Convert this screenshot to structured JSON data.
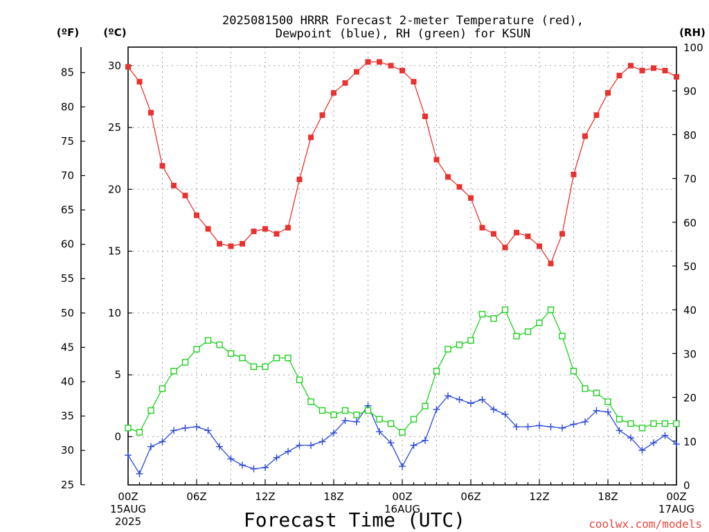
{
  "chart_data": {
    "type": "line",
    "title_line1": "2025081500 HRRR Forecast 2-meter Temperature (red),",
    "title_line2": "Dewpoint (blue), RH (green) for KSUN",
    "xlabel": "Forecast Time (UTC)",
    "credit": "coolwx.com/models",
    "units": {
      "fahrenheit": "(ºF)",
      "celsius": "(ºC)",
      "rh": "(RH)"
    },
    "ylim_c": [
      -3.9,
      31.5
    ],
    "ylim_rh": [
      0,
      100
    ],
    "yticks_f": [
      "25",
      "30",
      "35",
      "40",
      "45",
      "50",
      "55",
      "60",
      "65",
      "70",
      "75",
      "80",
      "85"
    ],
    "yticks_f_values": [
      25,
      30,
      35,
      40,
      45,
      50,
      55,
      60,
      65,
      70,
      75,
      80,
      85
    ],
    "yticks_c": [
      "0",
      "5",
      "10",
      "15",
      "20",
      "25",
      "30"
    ],
    "yticks_c_values": [
      0,
      5,
      10,
      15,
      20,
      25,
      30
    ],
    "yticks_rh": [
      "0",
      "10",
      "20",
      "30",
      "40",
      "50",
      "60",
      "70",
      "80",
      "90",
      "100"
    ],
    "yticks_rh_values": [
      0,
      10,
      20,
      30,
      40,
      50,
      60,
      70,
      80,
      90,
      100
    ],
    "xlim_hours": [
      0,
      48
    ],
    "xticks": [
      {
        "hour": 0,
        "lines": [
          "00Z",
          "15AUG",
          "2025"
        ]
      },
      {
        "hour": 6,
        "lines": [
          "06Z"
        ]
      },
      {
        "hour": 12,
        "lines": [
          "12Z"
        ]
      },
      {
        "hour": 18,
        "lines": [
          "18Z"
        ]
      },
      {
        "hour": 24,
        "lines": [
          "00Z",
          "16AUG"
        ]
      },
      {
        "hour": 30,
        "lines": [
          "06Z"
        ]
      },
      {
        "hour": 36,
        "lines": [
          "12Z"
        ]
      },
      {
        "hour": 42,
        "lines": [
          "18Z"
        ]
      },
      {
        "hour": 48,
        "lines": [
          "00Z",
          "17AUG"
        ]
      }
    ],
    "grid": true,
    "series": [
      {
        "name": "Temperature",
        "color": "#e8322f",
        "marker": "filled-square",
        "axis": "celsius",
        "values": [
          29.9,
          28.7,
          26.2,
          21.9,
          20.3,
          19.5,
          17.9,
          16.8,
          15.6,
          15.4,
          15.6,
          16.6,
          16.8,
          16.4,
          16.9,
          20.8,
          24.2,
          26.0,
          27.8,
          28.6,
          29.5,
          30.3,
          30.3,
          30.0,
          29.6,
          28.7,
          25.9,
          22.4,
          21.0,
          20.2,
          19.3,
          16.9,
          16.4,
          15.3,
          16.5,
          16.2,
          15.4,
          14.0,
          16.4,
          21.2,
          24.3,
          26.0,
          27.8,
          29.2,
          30.0,
          29.6,
          29.8,
          29.6,
          29.1
        ]
      },
      {
        "name": "Dewpoint",
        "color": "#2b46d8",
        "marker": "plus",
        "axis": "celsius",
        "values": [
          -1.5,
          -3.0,
          -0.8,
          -0.4,
          0.5,
          0.7,
          0.8,
          0.5,
          -0.8,
          -1.8,
          -2.3,
          -2.6,
          -2.5,
          -1.7,
          -1.2,
          -0.7,
          -0.7,
          -0.4,
          0.3,
          1.3,
          1.2,
          2.5,
          0.4,
          -0.5,
          -2.4,
          -0.7,
          -0.3,
          2.2,
          3.3,
          3.0,
          2.7,
          3.0,
          2.2,
          1.8,
          0.8,
          0.8,
          0.9,
          0.8,
          0.7,
          1.0,
          1.2,
          2.1,
          2.0,
          0.5,
          -0.1,
          -1.1,
          -0.5,
          0.1,
          -0.6
        ]
      },
      {
        "name": "RH",
        "color": "#1ed01e",
        "marker": "open-square",
        "axis": "rh",
        "values": [
          13,
          12,
          17,
          22,
          26,
          28,
          31,
          33,
          32,
          30,
          29,
          27,
          27,
          29,
          29,
          24,
          19,
          17,
          16,
          17,
          16,
          17,
          15,
          14,
          12,
          15,
          18,
          26,
          31,
          32,
          33,
          39,
          38,
          40,
          34,
          35,
          37,
          40,
          34,
          26,
          22,
          21,
          19,
          15,
          14,
          13,
          14,
          14,
          14
        ]
      }
    ]
  }
}
